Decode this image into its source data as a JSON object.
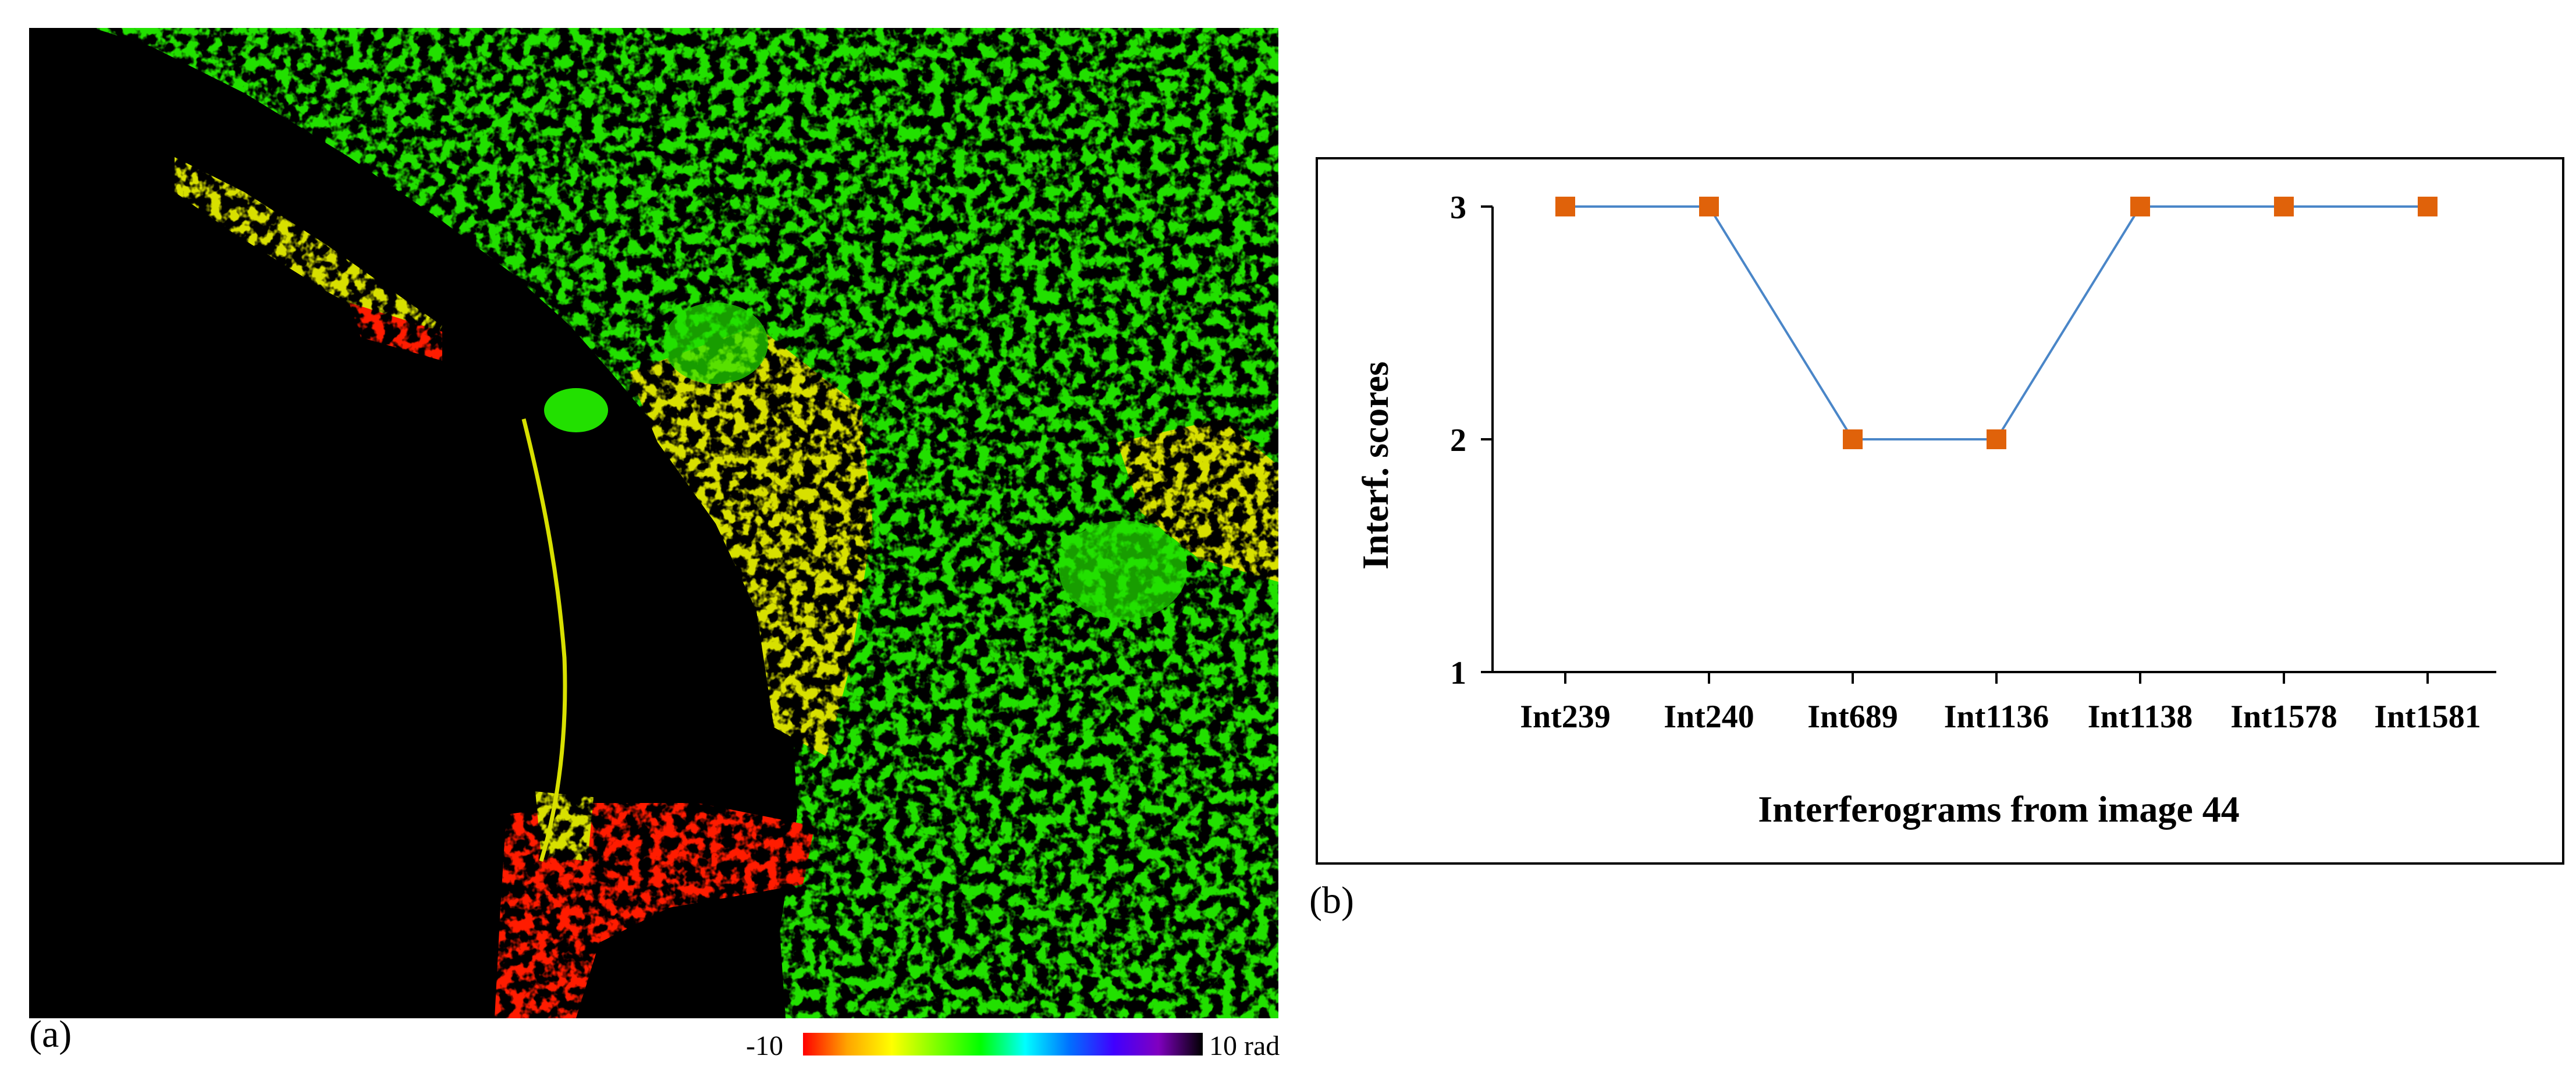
{
  "panel_a": {
    "label": "(a)",
    "colorbar": {
      "min_label": "-10",
      "max_label": "10 rad",
      "stops": [
        "#ff0000",
        "#ffa500",
        "#ffff00",
        "#7fff00",
        "#00ff00",
        "#00ffff",
        "#0070ff",
        "#4000ff",
        "#8000c0",
        "#000000"
      ]
    },
    "colors": {
      "background": "#000000",
      "urban_green": "#22e000",
      "urban_yellow": "#d8e000",
      "urban_red": "#ff1a00"
    }
  },
  "panel_b": {
    "label": "(b)"
  },
  "chart_data": {
    "type": "line",
    "title": "",
    "xlabel": "Interferograms from image 44",
    "ylabel": "Interf. scores",
    "categories": [
      "Int239",
      "Int240",
      "Int689",
      "Int1136",
      "Int1138",
      "Int1578",
      "Int1581"
    ],
    "series": [
      {
        "name": "Interf. scores",
        "values": [
          3,
          3,
          2,
          2,
          3,
          3,
          3
        ],
        "line_color": "#4a86c8",
        "marker_color": "#e0620a"
      }
    ],
    "ylim": [
      1,
      3
    ],
    "yticks": [
      1,
      2,
      3
    ],
    "grid": false,
    "legend": "none"
  }
}
